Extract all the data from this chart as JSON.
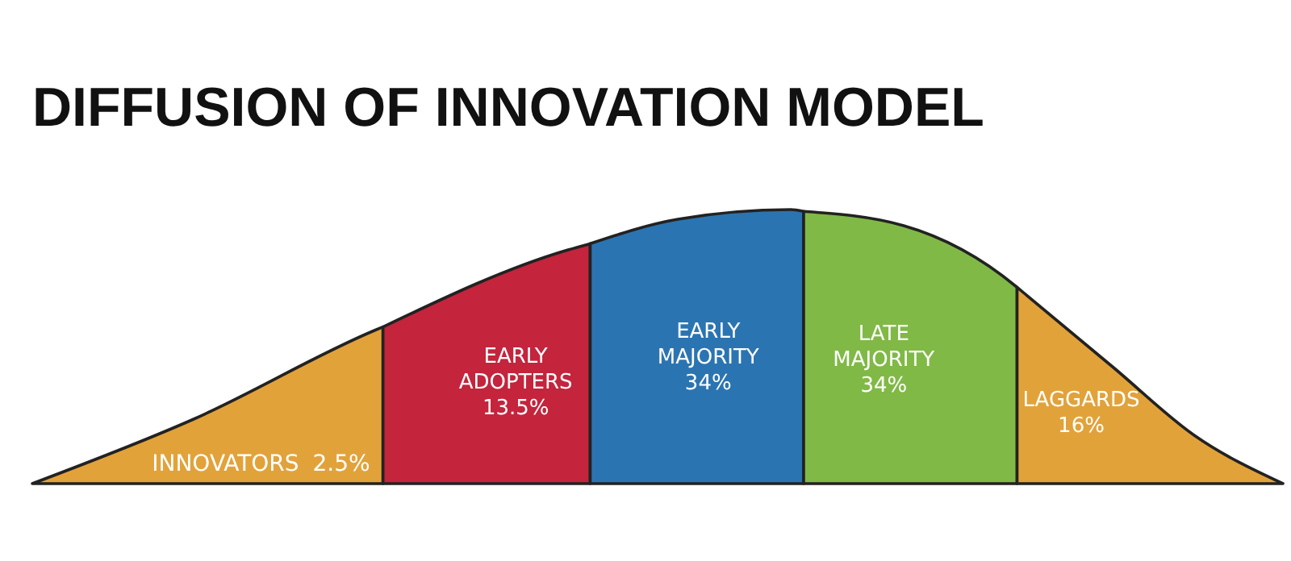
{
  "chart_data": {
    "type": "other",
    "title": "DIFFUSION OF INNOVATION MODEL",
    "categories": [
      "INNOVATORS",
      "EARLY ADOPTERS",
      "EARLY MAJORITY",
      "LATE MAJORITY",
      "LAGGARDS"
    ],
    "values": [
      2.5,
      13.5,
      34,
      34,
      16
    ],
    "value_labels": [
      "2.5%",
      "13.5%",
      "34%",
      "34%",
      "16%"
    ],
    "colors": [
      "#e2a23a",
      "#c4243c",
      "#2b74b2",
      "#80b946",
      "#e2a23a"
    ]
  }
}
